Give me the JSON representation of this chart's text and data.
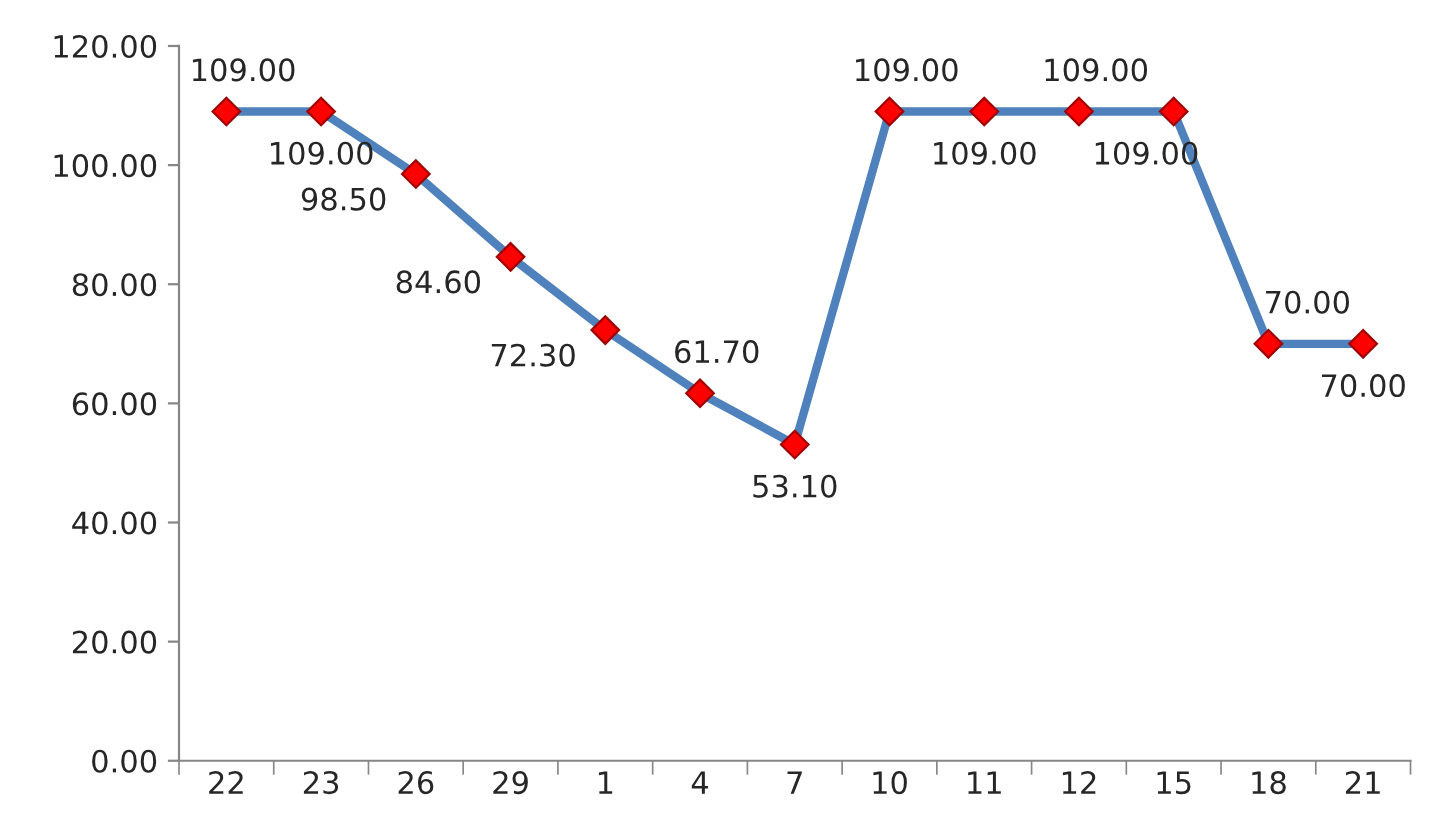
{
  "chart_data": {
    "type": "line",
    "categories": [
      "22",
      "23",
      "26",
      "29",
      "1",
      "4",
      "7",
      "10",
      "11",
      "12",
      "15",
      "18",
      "21"
    ],
    "series": [
      {
        "color": "#4f81bd",
        "values": [
          109.0,
          109.0,
          98.5,
          84.6,
          72.3,
          61.7,
          53.1,
          109.0,
          109.0,
          109.0,
          109.0,
          70.0,
          70.0
        ],
        "value_labels": [
          "109.00",
          "109.00",
          "98.50",
          "84.60",
          "72.30",
          "61.70",
          "53.10",
          "109.00",
          "109.00",
          "109.00",
          "109.00",
          "70.00",
          "70.00"
        ]
      }
    ],
    "ylim": [
      0,
      120
    ],
    "yticks": [
      {
        "value": 0,
        "label": "0.00"
      },
      {
        "value": 20,
        "label": "20.00"
      },
      {
        "value": 40,
        "label": "40.00"
      },
      {
        "value": 60,
        "label": "60.00"
      },
      {
        "value": 80,
        "label": "80.00"
      },
      {
        "value": 100,
        "label": "100.00"
      },
      {
        "value": 120,
        "label": "120.00"
      }
    ],
    "grid": false,
    "marker": "diamond",
    "line_style": "solid"
  }
}
